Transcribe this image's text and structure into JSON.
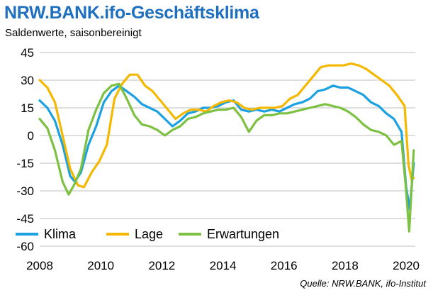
{
  "header": {
    "title": "NRW.BANK.ifo-Geschäftsklima",
    "subtitle": "Saldenwerte, saisonbereinigt"
  },
  "footer": {
    "source": "Quelle:  NRW.BANK, ifo-Institut"
  },
  "chart_data": {
    "type": "line",
    "title": "NRW.BANK.ifo-Geschäftsklima",
    "subtitle": "Saldenwerte, saisonbereinigt",
    "xlabel": "",
    "ylabel": "",
    "xlim": [
      2008.0,
      2020.3
    ],
    "ylim": [
      -60,
      45
    ],
    "yticks": [
      45,
      30,
      15,
      0,
      -15,
      -30,
      -45,
      -60
    ],
    "xticks": [
      2008,
      2010,
      2012,
      2014,
      2016,
      2018,
      2020
    ],
    "grid": "horizontal",
    "legend_position": "bottom-left",
    "series": [
      {
        "name": "Klima",
        "color": "#1ba1e2",
        "points": [
          [
            2008.0,
            19
          ],
          [
            2008.25,
            15
          ],
          [
            2008.5,
            8
          ],
          [
            2008.75,
            -5
          ],
          [
            2009.0,
            -22
          ],
          [
            2009.15,
            -25
          ],
          [
            2009.35,
            -20
          ],
          [
            2009.6,
            -5
          ],
          [
            2009.85,
            5
          ],
          [
            2010.1,
            18
          ],
          [
            2010.35,
            24
          ],
          [
            2010.6,
            27
          ],
          [
            2010.85,
            24
          ],
          [
            2011.1,
            21
          ],
          [
            2011.35,
            17
          ],
          [
            2011.6,
            15
          ],
          [
            2011.85,
            13
          ],
          [
            2012.1,
            9
          ],
          [
            2012.35,
            5
          ],
          [
            2012.6,
            8
          ],
          [
            2012.85,
            12
          ],
          [
            2013.1,
            13
          ],
          [
            2013.35,
            15
          ],
          [
            2013.6,
            15
          ],
          [
            2013.85,
            16
          ],
          [
            2014.1,
            18
          ],
          [
            2014.35,
            19
          ],
          [
            2014.6,
            14
          ],
          [
            2014.85,
            13
          ],
          [
            2015.1,
            14
          ],
          [
            2015.35,
            13
          ],
          [
            2015.6,
            14
          ],
          [
            2015.85,
            13
          ],
          [
            2016.1,
            15
          ],
          [
            2016.35,
            17
          ],
          [
            2016.6,
            18
          ],
          [
            2016.85,
            20
          ],
          [
            2017.1,
            24
          ],
          [
            2017.35,
            25
          ],
          [
            2017.6,
            27
          ],
          [
            2017.85,
            26
          ],
          [
            2018.1,
            26
          ],
          [
            2018.35,
            24
          ],
          [
            2018.6,
            22
          ],
          [
            2018.85,
            18
          ],
          [
            2019.1,
            16
          ],
          [
            2019.35,
            12
          ],
          [
            2019.6,
            9
          ],
          [
            2019.85,
            2
          ],
          [
            2020.0,
            -28
          ],
          [
            2020.12,
            -40
          ],
          [
            2020.25,
            -15
          ]
        ]
      },
      {
        "name": "Lage",
        "color": "#f5b800",
        "points": [
          [
            2008.0,
            30
          ],
          [
            2008.25,
            26
          ],
          [
            2008.5,
            18
          ],
          [
            2008.75,
            0
          ],
          [
            2009.0,
            -18
          ],
          [
            2009.25,
            -27
          ],
          [
            2009.45,
            -28
          ],
          [
            2009.7,
            -20
          ],
          [
            2009.95,
            -14
          ],
          [
            2010.2,
            -5
          ],
          [
            2010.45,
            20
          ],
          [
            2010.7,
            28
          ],
          [
            2010.95,
            33
          ],
          [
            2011.2,
            33
          ],
          [
            2011.45,
            27
          ],
          [
            2011.7,
            24
          ],
          [
            2011.95,
            19
          ],
          [
            2012.2,
            14
          ],
          [
            2012.45,
            9
          ],
          [
            2012.7,
            12
          ],
          [
            2012.95,
            14
          ],
          [
            2013.2,
            14
          ],
          [
            2013.45,
            13
          ],
          [
            2013.7,
            16
          ],
          [
            2013.95,
            18
          ],
          [
            2014.2,
            19
          ],
          [
            2014.45,
            18
          ],
          [
            2014.7,
            15
          ],
          [
            2014.95,
            14
          ],
          [
            2015.2,
            15
          ],
          [
            2015.45,
            15
          ],
          [
            2015.7,
            15
          ],
          [
            2015.95,
            16
          ],
          [
            2016.2,
            20
          ],
          [
            2016.45,
            22
          ],
          [
            2016.7,
            27
          ],
          [
            2016.95,
            32
          ],
          [
            2017.2,
            37
          ],
          [
            2017.45,
            38
          ],
          [
            2017.7,
            38
          ],
          [
            2017.95,
            38
          ],
          [
            2018.2,
            39
          ],
          [
            2018.45,
            38
          ],
          [
            2018.7,
            36
          ],
          [
            2018.95,
            33
          ],
          [
            2019.2,
            30
          ],
          [
            2019.45,
            27
          ],
          [
            2019.7,
            22
          ],
          [
            2019.95,
            16
          ],
          [
            2020.08,
            -16
          ],
          [
            2020.18,
            -24
          ],
          [
            2020.25,
            -23
          ]
        ]
      },
      {
        "name": "Erwartungen",
        "color": "#7cc142",
        "points": [
          [
            2008.0,
            9
          ],
          [
            2008.25,
            4
          ],
          [
            2008.5,
            -8
          ],
          [
            2008.75,
            -25
          ],
          [
            2008.95,
            -32
          ],
          [
            2009.15,
            -26
          ],
          [
            2009.35,
            -18
          ],
          [
            2009.6,
            3
          ],
          [
            2009.85,
            14
          ],
          [
            2010.1,
            23
          ],
          [
            2010.35,
            27
          ],
          [
            2010.6,
            28
          ],
          [
            2010.85,
            20
          ],
          [
            2011.1,
            11
          ],
          [
            2011.35,
            6
          ],
          [
            2011.6,
            5
          ],
          [
            2011.85,
            3
          ],
          [
            2012.1,
            0
          ],
          [
            2012.35,
            3
          ],
          [
            2012.6,
            5
          ],
          [
            2012.85,
            9
          ],
          [
            2013.1,
            10
          ],
          [
            2013.35,
            12
          ],
          [
            2013.6,
            13
          ],
          [
            2013.85,
            14
          ],
          [
            2014.1,
            14
          ],
          [
            2014.35,
            15
          ],
          [
            2014.6,
            10
          ],
          [
            2014.85,
            2
          ],
          [
            2015.1,
            8
          ],
          [
            2015.35,
            11
          ],
          [
            2015.6,
            11
          ],
          [
            2015.85,
            12
          ],
          [
            2016.1,
            12
          ],
          [
            2016.35,
            13
          ],
          [
            2016.6,
            14
          ],
          [
            2016.85,
            15
          ],
          [
            2017.1,
            16
          ],
          [
            2017.35,
            17
          ],
          [
            2017.6,
            16
          ],
          [
            2017.85,
            15
          ],
          [
            2018.1,
            13
          ],
          [
            2018.35,
            10
          ],
          [
            2018.6,
            6
          ],
          [
            2018.85,
            3
          ],
          [
            2019.1,
            2
          ],
          [
            2019.35,
            0
          ],
          [
            2019.6,
            -5
          ],
          [
            2019.85,
            -3
          ],
          [
            2020.0,
            -30
          ],
          [
            2020.1,
            -52
          ],
          [
            2020.25,
            -8
          ]
        ]
      }
    ]
  }
}
